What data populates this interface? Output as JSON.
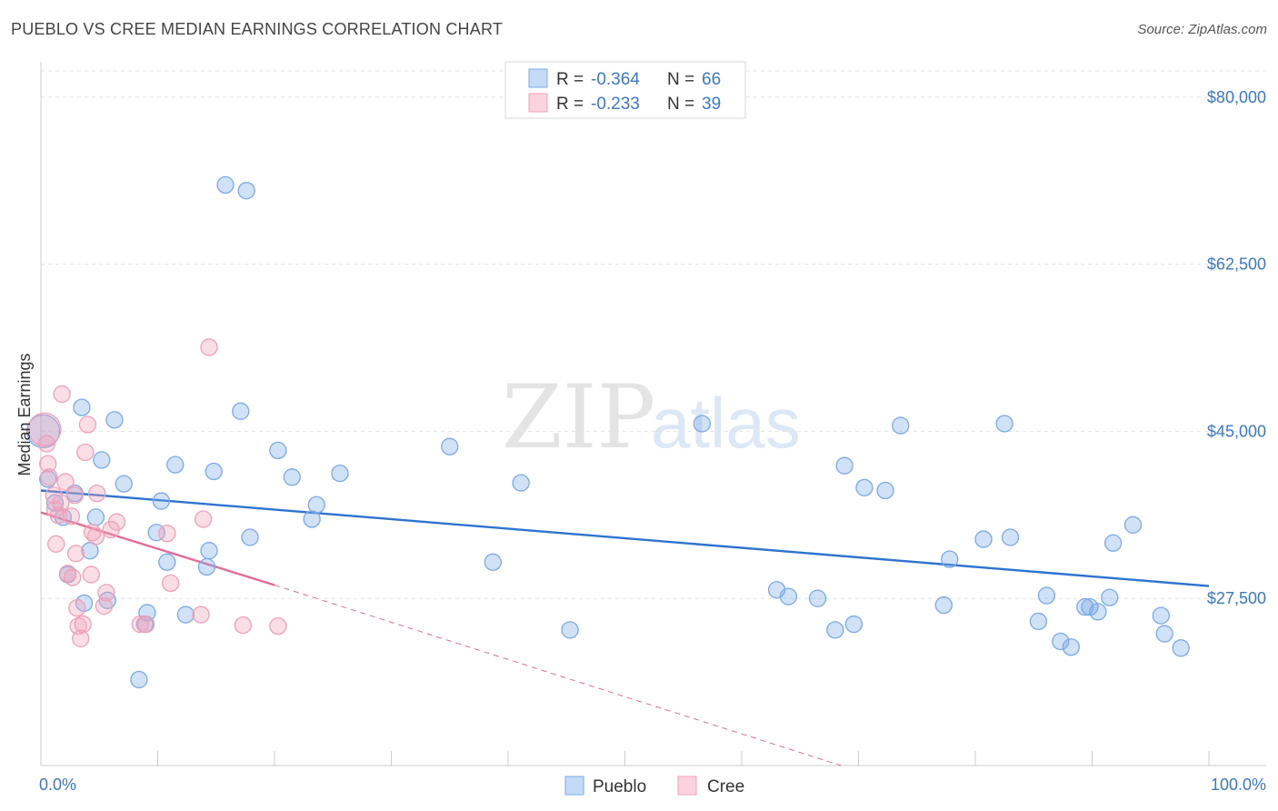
{
  "header": {
    "title": "PUEBLO VS CREE MEDIAN EARNINGS CORRELATION CHART",
    "source": "Source: ZipAtlas.com"
  },
  "watermark": {
    "zip": "ZIP",
    "atlas": "atlas"
  },
  "legend": {
    "rows": [
      {
        "r_label": "R =",
        "r_value": "-0.364",
        "n_label": "N =",
        "n_value": "66",
        "color": "#7aaae6"
      },
      {
        "r_label": "R =",
        "r_value": "-0.233",
        "n_label": "N =",
        "n_value": "39",
        "color": "#f0a0b8"
      }
    ],
    "bottom": [
      {
        "label": "Pueblo",
        "color": "#7aaae6"
      },
      {
        "label": "Cree",
        "color": "#f0a0b8"
      }
    ]
  },
  "chart_data": {
    "type": "scatter",
    "title": "PUEBLO VS CREE MEDIAN EARNINGS CORRELATION CHART",
    "xlabel": "",
    "ylabel": "Median Earnings",
    "xlim": [
      0,
      100
    ],
    "ylim": [
      10000,
      83500
    ],
    "x_tick_labels": [
      "0.0%",
      "100.0%"
    ],
    "y_ticks": [
      27500,
      45000,
      62500,
      80000
    ],
    "y_tick_labels": [
      "$27,500",
      "$45,000",
      "$62,500",
      "$80,000"
    ],
    "grid": true,
    "legend_position": "top-center",
    "series": [
      {
        "name": "Pueblo",
        "color": "#7aaae6",
        "line_color": "#2d73d0",
        "trend": {
          "x": [
            0,
            100
          ],
          "y": [
            38800,
            28800
          ]
        },
        "points": [
          [
            0.2,
            45000
          ],
          [
            0.6,
            40000
          ],
          [
            1.2,
            37500
          ],
          [
            1.9,
            36000
          ],
          [
            2.3,
            30000
          ],
          [
            2.9,
            38500
          ],
          [
            3.5,
            47500
          ],
          [
            3.7,
            27000
          ],
          [
            4.2,
            32500
          ],
          [
            4.7,
            36000
          ],
          [
            5.2,
            42000
          ],
          [
            5.7,
            27300
          ],
          [
            6.3,
            46200
          ],
          [
            7.1,
            39500
          ],
          [
            8.4,
            19000
          ],
          [
            8.9,
            24800
          ],
          [
            9.1,
            26000
          ],
          [
            9.9,
            34400
          ],
          [
            10.3,
            37700
          ],
          [
            10.8,
            31300
          ],
          [
            11.5,
            41500
          ],
          [
            12.4,
            25800
          ],
          [
            14.2,
            30800
          ],
          [
            14.4,
            32500
          ],
          [
            14.8,
            40800
          ],
          [
            15.8,
            70800
          ],
          [
            17.1,
            47100
          ],
          [
            17.6,
            70200
          ],
          [
            17.9,
            33900
          ],
          [
            20.3,
            43000
          ],
          [
            21.5,
            40200
          ],
          [
            23.2,
            35800
          ],
          [
            23.6,
            37300
          ],
          [
            25.6,
            40600
          ],
          [
            35.0,
            43400
          ],
          [
            38.7,
            31300
          ],
          [
            41.1,
            39600
          ],
          [
            45.3,
            24200
          ],
          [
            56.6,
            45800
          ],
          [
            63.0,
            28400
          ],
          [
            64.0,
            27700
          ],
          [
            66.5,
            27500
          ],
          [
            68.0,
            24200
          ],
          [
            68.8,
            41400
          ],
          [
            69.6,
            24800
          ],
          [
            70.5,
            39100
          ],
          [
            72.3,
            38800
          ],
          [
            73.6,
            45600
          ],
          [
            77.3,
            26800
          ],
          [
            77.8,
            31600
          ],
          [
            80.7,
            33700
          ],
          [
            82.5,
            45800
          ],
          [
            83.0,
            33900
          ],
          [
            85.4,
            25100
          ],
          [
            86.1,
            27800
          ],
          [
            87.3,
            23000
          ],
          [
            88.2,
            22400
          ],
          [
            89.4,
            26600
          ],
          [
            89.8,
            26600
          ],
          [
            90.5,
            26100
          ],
          [
            91.5,
            27600
          ],
          [
            91.8,
            33300
          ],
          [
            93.5,
            35200
          ],
          [
            95.9,
            25700
          ],
          [
            96.2,
            23800
          ],
          [
            97.6,
            22300
          ]
        ]
      },
      {
        "name": "Cree",
        "color": "#f0a0b8",
        "line_color": "#e36b95",
        "trend": {
          "x": [
            0,
            20
          ],
          "y": [
            36500,
            28900
          ]
        },
        "trend_extension": {
          "x": [
            20,
            68.5
          ],
          "y": [
            28900,
            10000
          ]
        },
        "points": [
          [
            0.3,
            45200
          ],
          [
            0.5,
            43700
          ],
          [
            0.6,
            41600
          ],
          [
            0.7,
            40200
          ],
          [
            1.1,
            38300
          ],
          [
            1.2,
            36800
          ],
          [
            1.3,
            33200
          ],
          [
            1.5,
            36200
          ],
          [
            1.7,
            37500
          ],
          [
            1.8,
            48900
          ],
          [
            2.1,
            39700
          ],
          [
            2.3,
            30100
          ],
          [
            2.6,
            36100
          ],
          [
            2.7,
            29700
          ],
          [
            2.9,
            38300
          ],
          [
            3.0,
            32200
          ],
          [
            3.1,
            26500
          ],
          [
            3.2,
            24600
          ],
          [
            3.4,
            23300
          ],
          [
            3.6,
            24800
          ],
          [
            3.8,
            42800
          ],
          [
            4.0,
            45700
          ],
          [
            4.3,
            30000
          ],
          [
            4.4,
            34400
          ],
          [
            4.7,
            34000
          ],
          [
            4.8,
            38500
          ],
          [
            5.4,
            26700
          ],
          [
            5.6,
            28100
          ],
          [
            6.0,
            34700
          ],
          [
            6.5,
            35500
          ],
          [
            8.5,
            24800
          ],
          [
            9.0,
            24800
          ],
          [
            10.8,
            34300
          ],
          [
            11.1,
            29100
          ],
          [
            13.7,
            25800
          ],
          [
            13.9,
            35800
          ],
          [
            14.4,
            53800
          ],
          [
            17.3,
            24700
          ],
          [
            20.3,
            24600
          ]
        ]
      }
    ]
  }
}
